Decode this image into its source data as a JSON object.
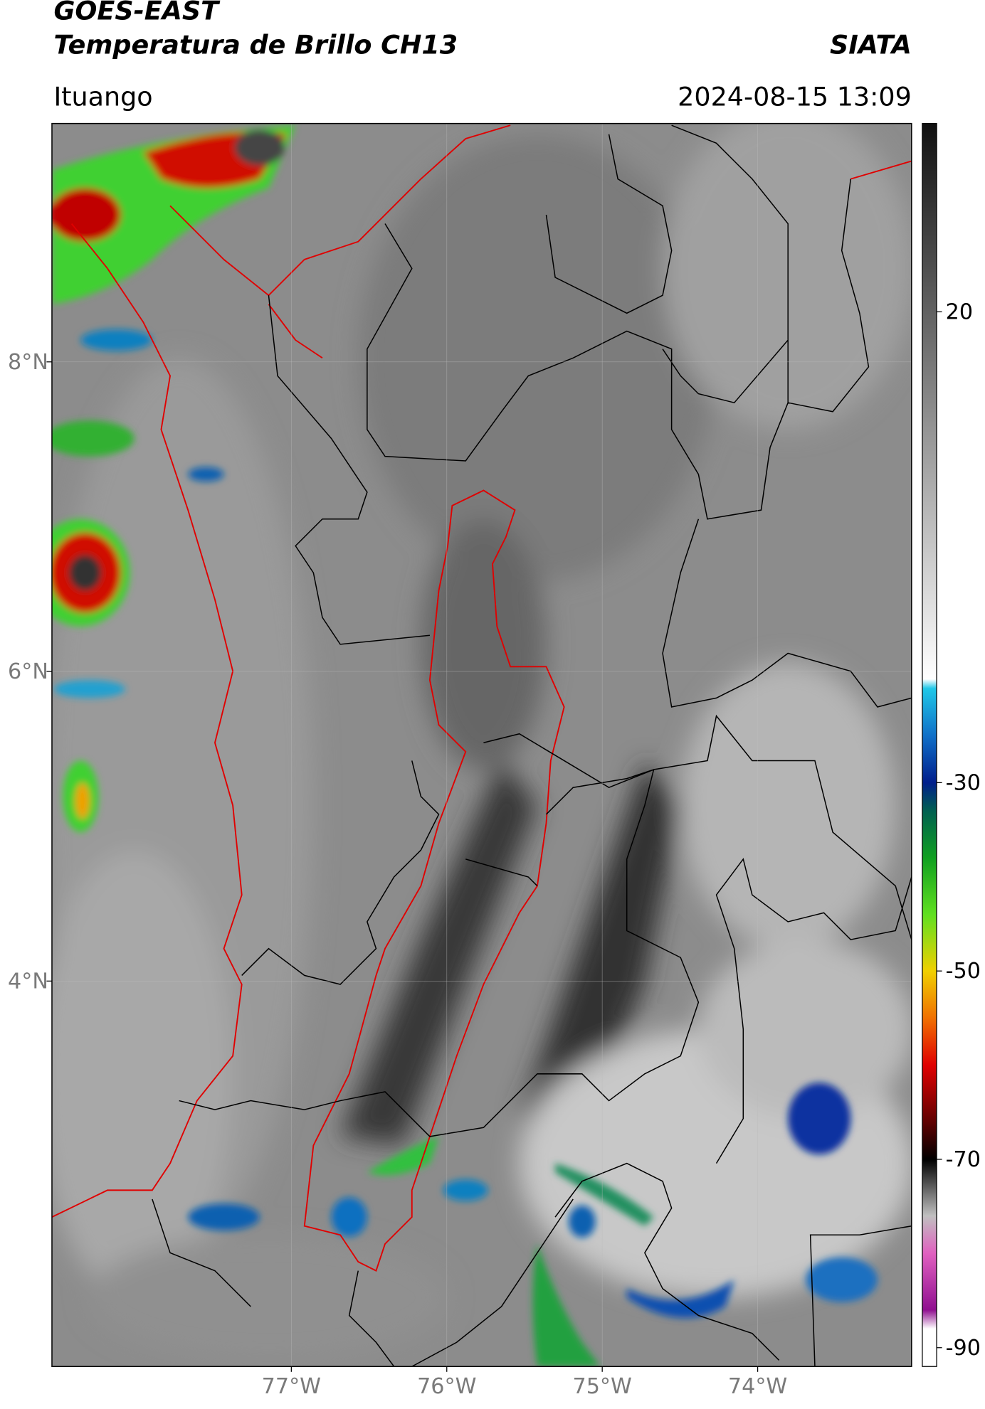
{
  "header": {
    "title": "GOES-EAST",
    "subtitle": "Temperatura de Brillo CH13",
    "agency": "SIATA",
    "location": "Ituango",
    "datetime": "2024-08-15 13:09"
  },
  "map": {
    "lonlim": [
      -78.54,
      -73.01
    ],
    "latlim": [
      1.51,
      9.54
    ],
    "lat_ticks": [
      {
        "value": 8,
        "label": "8°N"
      },
      {
        "value": 6,
        "label": "6°N"
      },
      {
        "value": 4,
        "label": "4°N"
      }
    ],
    "lon_ticks": [
      {
        "value": -77,
        "label": "77°W"
      },
      {
        "value": -76,
        "label": "76°W"
      },
      {
        "value": -75,
        "label": "75°W"
      },
      {
        "value": -74,
        "label": "74°W"
      }
    ]
  },
  "colorbar": {
    "range": [
      40,
      -92
    ],
    "ticks": [
      20,
      -30,
      -50,
      -70,
      -90
    ],
    "colorscale": [
      [
        40,
        "#111111"
      ],
      [
        -19,
        "#ffffff"
      ],
      [
        -20,
        "#20c8e8"
      ],
      [
        -25,
        "#1070c8"
      ],
      [
        -30,
        "#001e8c"
      ],
      [
        -33,
        "#006050"
      ],
      [
        -38,
        "#10a020"
      ],
      [
        -44,
        "#60e020"
      ],
      [
        -50,
        "#f0d000"
      ],
      [
        -55,
        "#f07000"
      ],
      [
        -60,
        "#e00000"
      ],
      [
        -66,
        "#600000"
      ],
      [
        -70,
        "#000000"
      ],
      [
        -76,
        "#c0c0c0"
      ],
      [
        -80,
        "#e060c0"
      ],
      [
        -86,
        "#901090"
      ],
      [
        -88,
        "#ffffff"
      ],
      [
        -92,
        "#ffffff"
      ]
    ]
  }
}
